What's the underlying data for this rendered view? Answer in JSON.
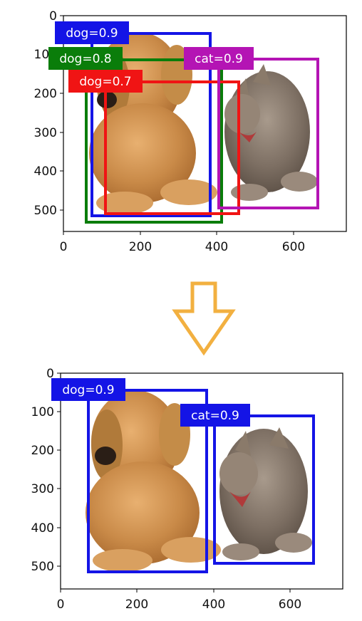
{
  "panels": [
    {
      "axes": {
        "x_ticks": [
          "0",
          "200",
          "400",
          "600"
        ],
        "y_ticks": [
          "0",
          "100",
          "200",
          "300",
          "400",
          "500"
        ]
      },
      "boxes": [
        {
          "label": "dog=0.9",
          "color": "#1414e6"
        },
        {
          "label": "dog=0.8",
          "color": "#0a7d0a"
        },
        {
          "label": "dog=0.7",
          "color": "#f01414"
        },
        {
          "label": "cat=0.9",
          "color": "#b414b4"
        }
      ]
    },
    {
      "axes": {
        "x_ticks": [
          "0",
          "200",
          "400",
          "600"
        ],
        "y_ticks": [
          "0",
          "100",
          "200",
          "300",
          "400",
          "500"
        ]
      },
      "boxes": [
        {
          "label": "dog=0.9",
          "color": "#1414e6"
        },
        {
          "label": "cat=0.9",
          "color": "#1414e6"
        }
      ]
    }
  ],
  "arrow": {
    "color": "#f2b040",
    "icon": "down-arrow-icon"
  }
}
